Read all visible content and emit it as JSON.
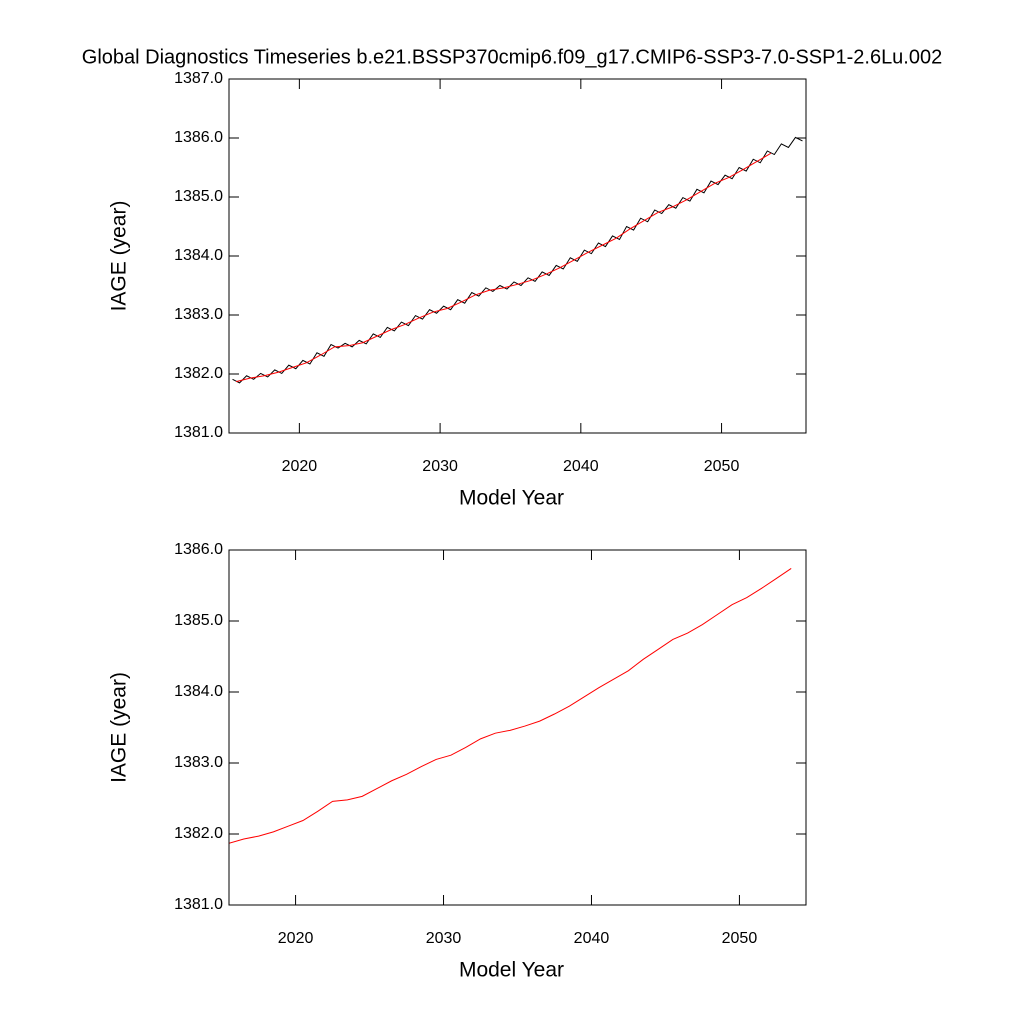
{
  "title": "Global Diagnostics Timeseries b.e21.BSSP370cmip6.f09_g17.CMIP6-SSP3-7.0-SSP1-2.6Lu.002",
  "chart_data": [
    {
      "type": "line",
      "xlabel": "Model Year",
      "ylabel": "IAGE (year)",
      "xlim": [
        2015,
        2056
      ],
      "ylim": [
        1381,
        1387
      ],
      "xticks": [
        2020,
        2030,
        2040,
        2050
      ],
      "yticks": [
        {
          "value": 1381,
          "label": "1381.0"
        },
        {
          "value": 1382,
          "label": "1382.0"
        },
        {
          "value": 1383,
          "label": "1383.0"
        },
        {
          "value": 1384,
          "label": "1384.0"
        },
        {
          "value": 1385,
          "label": "1385.0"
        },
        {
          "value": 1386,
          "label": "1386.0"
        },
        {
          "value": 1387,
          "label": "1387.0"
        }
      ],
      "series": [
        {
          "color": "#000000",
          "x": [
            2015.25,
            2015.75,
            2016.25,
            2016.75,
            2017.25,
            2017.75,
            2018.25,
            2018.75,
            2019.25,
            2019.75,
            2020.25,
            2020.75,
            2021.25,
            2021.75,
            2022.25,
            2022.75,
            2023.25,
            2023.75,
            2024.25,
            2024.75,
            2025.25,
            2025.75,
            2026.25,
            2026.75,
            2027.25,
            2027.75,
            2028.25,
            2028.75,
            2029.25,
            2029.75,
            2030.25,
            2030.75,
            2031.25,
            2031.75,
            2032.25,
            2032.75,
            2033.25,
            2033.75,
            2034.25,
            2034.75,
            2035.25,
            2035.75,
            2036.25,
            2036.75,
            2037.25,
            2037.75,
            2038.25,
            2038.75,
            2039.25,
            2039.75,
            2040.25,
            2040.75,
            2041.25,
            2041.75,
            2042.25,
            2042.75,
            2043.25,
            2043.75,
            2044.25,
            2044.75,
            2045.25,
            2045.75,
            2046.25,
            2046.75,
            2047.25,
            2047.75,
            2048.25,
            2048.75,
            2049.25,
            2049.75,
            2050.25,
            2050.75,
            2051.25,
            2051.75,
            2052.25,
            2052.75,
            2053.25,
            2053.75,
            2054.25,
            2054.75,
            2055.25,
            2055.75
          ],
          "values": [
            1381.91,
            1381.85,
            1381.97,
            1381.91,
            1382.01,
            1381.95,
            1382.07,
            1382.01,
            1382.15,
            1382.09,
            1382.23,
            1382.17,
            1382.36,
            1382.3,
            1382.5,
            1382.44,
            1382.52,
            1382.46,
            1382.57,
            1382.51,
            1382.68,
            1382.62,
            1382.79,
            1382.73,
            1382.88,
            1382.82,
            1382.99,
            1382.93,
            1383.09,
            1383.03,
            1383.15,
            1383.09,
            1383.26,
            1383.2,
            1383.38,
            1383.32,
            1383.46,
            1383.4,
            1383.5,
            1383.44,
            1383.56,
            1383.5,
            1383.63,
            1383.57,
            1383.73,
            1383.67,
            1383.84,
            1383.78,
            1383.97,
            1383.91,
            1384.1,
            1384.04,
            1384.22,
            1384.16,
            1384.34,
            1384.28,
            1384.5,
            1384.44,
            1384.64,
            1384.58,
            1384.78,
            1384.72,
            1384.87,
            1384.81,
            1384.99,
            1384.93,
            1385.13,
            1385.07,
            1385.27,
            1385.21,
            1385.37,
            1385.31,
            1385.5,
            1385.44,
            1385.64,
            1385.58,
            1385.78,
            1385.72,
            1385.9,
            1385.84,
            1386.01,
            1385.95
          ]
        },
        {
          "color": "#ff0000",
          "x": [
            2015.5,
            2016.5,
            2017.5,
            2018.5,
            2019.5,
            2020.5,
            2021.5,
            2022.5,
            2023.5,
            2024.5,
            2025.5,
            2026.5,
            2027.5,
            2028.5,
            2029.5,
            2030.5,
            2031.5,
            2032.5,
            2033.5,
            2034.5,
            2035.5,
            2036.5,
            2037.5,
            2038.5,
            2039.5,
            2040.5,
            2041.5,
            2042.5,
            2043.5,
            2044.5,
            2045.5,
            2046.5,
            2047.5,
            2048.5,
            2049.5,
            2050.5,
            2051.5,
            2052.5,
            2053.5
          ],
          "values": [
            1381.87,
            1381.93,
            1381.97,
            1382.03,
            1382.11,
            1382.19,
            1382.32,
            1382.46,
            1382.48,
            1382.53,
            1382.64,
            1382.75,
            1382.84,
            1382.95,
            1383.05,
            1383.11,
            1383.22,
            1383.34,
            1383.42,
            1383.46,
            1383.52,
            1383.59,
            1383.69,
            1383.8,
            1383.93,
            1384.06,
            1384.18,
            1384.3,
            1384.46,
            1384.6,
            1384.74,
            1384.83,
            1384.95,
            1385.09,
            1385.23,
            1385.33,
            1385.46,
            1385.6,
            1385.74
          ]
        }
      ]
    },
    {
      "type": "line",
      "xlabel": "Model Year",
      "ylabel": "IAGE (year)",
      "xlim": [
        2015.5,
        2054.5
      ],
      "ylim": [
        1381,
        1386
      ],
      "xticks": [
        2020,
        2030,
        2040,
        2050
      ],
      "yticks": [
        {
          "value": 1381,
          "label": "1381.0"
        },
        {
          "value": 1382,
          "label": "1382.0"
        },
        {
          "value": 1383,
          "label": "1383.0"
        },
        {
          "value": 1384,
          "label": "1384.0"
        },
        {
          "value": 1385,
          "label": "1385.0"
        },
        {
          "value": 1386,
          "label": "1386.0"
        }
      ],
      "series": [
        {
          "color": "#ff0000",
          "x": [
            2015.5,
            2016.5,
            2017.5,
            2018.5,
            2019.5,
            2020.5,
            2021.5,
            2022.5,
            2023.5,
            2024.5,
            2025.5,
            2026.5,
            2027.5,
            2028.5,
            2029.5,
            2030.5,
            2031.5,
            2032.5,
            2033.5,
            2034.5,
            2035.5,
            2036.5,
            2037.5,
            2038.5,
            2039.5,
            2040.5,
            2041.5,
            2042.5,
            2043.5,
            2044.5,
            2045.5,
            2046.5,
            2047.5,
            2048.5,
            2049.5,
            2050.5,
            2051.5,
            2052.5,
            2053.5
          ],
          "values": [
            1381.87,
            1381.93,
            1381.97,
            1382.03,
            1382.11,
            1382.19,
            1382.32,
            1382.46,
            1382.48,
            1382.53,
            1382.64,
            1382.75,
            1382.84,
            1382.95,
            1383.05,
            1383.11,
            1383.22,
            1383.34,
            1383.42,
            1383.46,
            1383.52,
            1383.59,
            1383.69,
            1383.8,
            1383.93,
            1384.06,
            1384.18,
            1384.3,
            1384.46,
            1384.6,
            1384.74,
            1384.83,
            1384.95,
            1385.09,
            1385.23,
            1385.33,
            1385.46,
            1385.6,
            1385.74
          ]
        }
      ]
    }
  ]
}
